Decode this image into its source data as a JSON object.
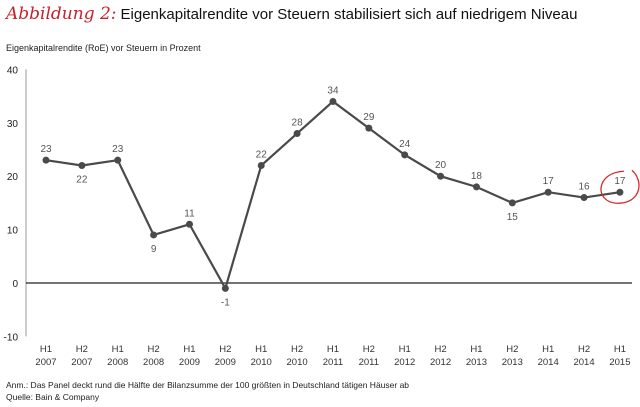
{
  "title": {
    "figure": "Abbildung 2:",
    "text": "Eigenkapitalrendite vor Steuern stabilisiert sich auf niedrigem Niveau"
  },
  "notes": {
    "anm": "Anm.: Das Panel deckt rund die Hälfte der Bilanzsumme der 100 größten in Deutschland tätigen Häuser ab",
    "source": "Quelle: Bain & Company"
  },
  "chart_data": {
    "type": "line",
    "title": "Eigenkapitalrendite vor Steuern stabilisiert sich auf niedrigem Niveau",
    "ylabel": "Eigenkapitalrendite (RoE) vor Steuern in Prozent",
    "xlabel": "",
    "ylim": [
      -10,
      40
    ],
    "yticks": [
      -10,
      0,
      10,
      20,
      30,
      40
    ],
    "categories": [
      [
        "H1",
        "2007"
      ],
      [
        "H2",
        "2007"
      ],
      [
        "H1",
        "2008"
      ],
      [
        "H2",
        "2008"
      ],
      [
        "H1",
        "2009"
      ],
      [
        "H2",
        "2009"
      ],
      [
        "H1",
        "2010"
      ],
      [
        "H2",
        "2010"
      ],
      [
        "H1",
        "2011"
      ],
      [
        "H2",
        "2011"
      ],
      [
        "H1",
        "2012"
      ],
      [
        "H2",
        "2012"
      ],
      [
        "H1",
        "2013"
      ],
      [
        "H2",
        "2013"
      ],
      [
        "H1",
        "2014"
      ],
      [
        "H2",
        "2014"
      ],
      [
        "H1",
        "2015"
      ]
    ],
    "values": [
      23,
      22,
      23,
      9,
      11,
      -1,
      22,
      28,
      34,
      29,
      24,
      20,
      18,
      15,
      17,
      16,
      17
    ],
    "label_below": [
      false,
      true,
      false,
      true,
      false,
      true,
      false,
      false,
      false,
      false,
      false,
      false,
      false,
      true,
      false,
      false,
      false
    ],
    "highlight_index": 16,
    "line_color": "#4a4a4a",
    "highlight_color": "#d62a2a"
  }
}
